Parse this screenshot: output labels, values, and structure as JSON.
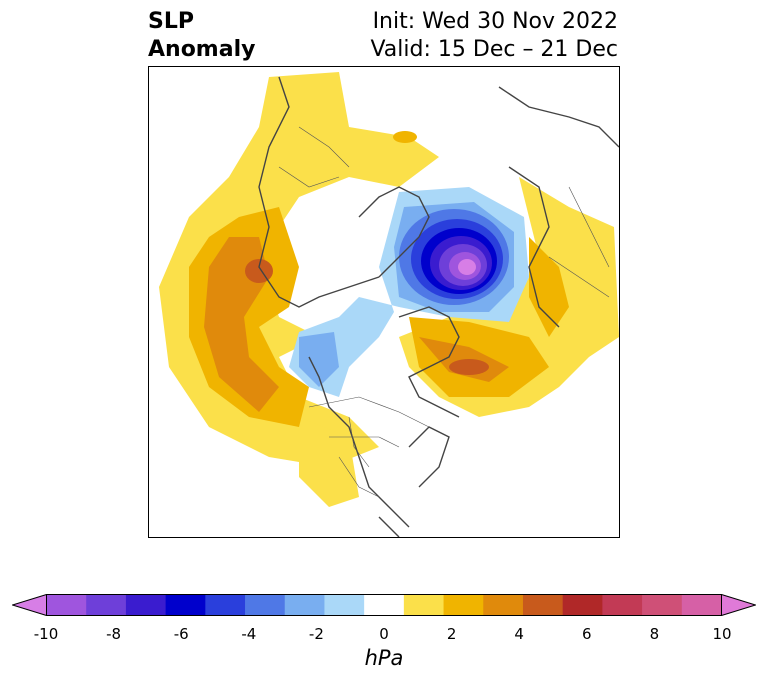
{
  "title": {
    "left_line1": "SLP",
    "left_line2": "Anomaly",
    "init": "Init: Wed 30 Nov 2022",
    "valid": "Valid: 15 Dec – 21 Dec"
  },
  "colorbar": {
    "units": "hPa",
    "min": -10,
    "max": 10,
    "ticks": [
      "-10",
      "-8",
      "-6",
      "-4",
      "-2",
      "0",
      "2",
      "4",
      "6",
      "8",
      "10"
    ],
    "colors": [
      "#d77ee6",
      "#9f55de",
      "#6e3fd9",
      "#3a1ccf",
      "#0000cc",
      "#2a3fdc",
      "#4f78e6",
      "#79aef0",
      "#aad8f8",
      "#ffffff",
      "#fbe04a",
      "#f0b400",
      "#e08a0c",
      "#c85a1c",
      "#b02828",
      "#c23a55",
      "#cf5077",
      "#d660a6",
      "#e07ad8"
    ]
  }
}
